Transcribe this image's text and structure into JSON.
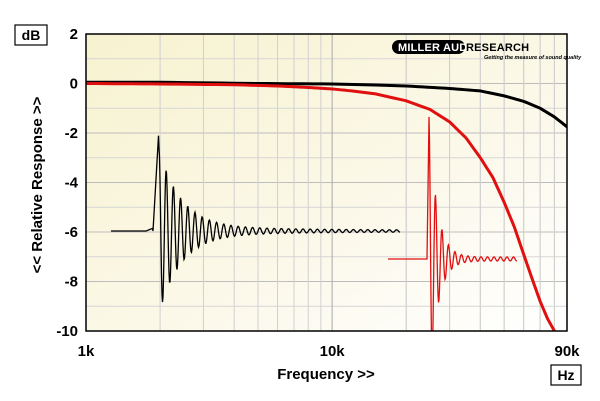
{
  "chart_data": {
    "type": "line",
    "xlabel": "Frequency >>",
    "ylabel": "<< Relative Response >>",
    "y_unit": "dB",
    "x_unit": "Hz",
    "x_scale": "log",
    "xlim": [
      1000,
      90000
    ],
    "ylim": [
      -10,
      2
    ],
    "grid": true,
    "x_ticks": [
      {
        "value": 1000,
        "label": "1k"
      },
      {
        "value": 10000,
        "label": "10k"
      },
      {
        "value": 90000,
        "label": "90k"
      }
    ],
    "y_ticks": [
      {
        "value": 2,
        "label": "2"
      },
      {
        "value": 0,
        "label": "0"
      },
      {
        "value": -2,
        "label": "-2"
      },
      {
        "value": -4,
        "label": "-4"
      },
      {
        "value": -6,
        "label": "-6"
      },
      {
        "value": -8,
        "label": "-8"
      },
      {
        "value": -10,
        "label": "-10"
      }
    ],
    "series": [
      {
        "color": "#000000",
        "x": [
          1000,
          2000,
          5000,
          10000,
          15000,
          20000,
          30000,
          40000,
          50000,
          60000,
          70000,
          80000,
          90000
        ],
        "values": [
          0.05,
          0.05,
          0.0,
          -0.02,
          -0.06,
          -0.1,
          -0.2,
          -0.3,
          -0.5,
          -0.72,
          -1.0,
          -1.35,
          -1.75
        ]
      },
      {
        "color": "#e01010",
        "x": [
          1000,
          2000,
          4000,
          6000,
          8000,
          10000,
          12000,
          15000,
          20000,
          25000,
          30000,
          35000,
          40000,
          45000,
          50000,
          55000,
          60000,
          65000,
          70000,
          75000,
          80000
        ],
        "values": [
          0.0,
          -0.02,
          -0.05,
          -0.1,
          -0.16,
          -0.22,
          -0.3,
          -0.42,
          -0.7,
          -1.05,
          -1.55,
          -2.2,
          -3.0,
          -3.8,
          -4.8,
          -5.8,
          -6.9,
          -7.9,
          -8.8,
          -9.5,
          -10.0
        ]
      }
    ],
    "insets": [
      {
        "name": "impulse-response-black",
        "color": "#000000"
      },
      {
        "name": "impulse-response-red",
        "color": "#e01010"
      }
    ],
    "logo": {
      "text": "MILLER AUDIO RESEARCH",
      "tagline": "Getting the measure of sound quality"
    }
  }
}
